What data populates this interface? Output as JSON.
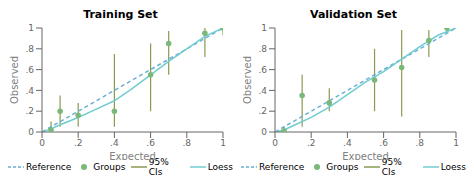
{
  "chart_data": [
    {
      "type": "scatter",
      "title": "Training Set",
      "xlabel": "Expected",
      "ylabel": "Observed",
      "xlim": [
        0,
        1.0
      ],
      "ylim": [
        0,
        1.0
      ],
      "xticks": [
        0,
        {
          "value": 0.2,
          "label": ".2"
        },
        {
          "value": 0.4,
          "label": ".4"
        },
        {
          "value": 0.6,
          "label": ".6"
        },
        {
          "value": 0.8,
          "label": ".8"
        },
        1
      ],
      "yticks": [
        0,
        {
          "value": 0.2,
          "label": ".2"
        },
        {
          "value": 0.4,
          "label": ".4"
        },
        {
          "value": 0.6,
          "label": ".6"
        },
        {
          "value": 0.8,
          "label": ".8"
        },
        1
      ],
      "grid": false,
      "legend": "bottom",
      "series": [
        {
          "name": "95% CIs",
          "type": "errorbar",
          "color": "#8a9a50",
          "line_style": "solid",
          "x": [
            0.05,
            0.1,
            0.2,
            0.4,
            0.6,
            0.7,
            0.9,
            1.0
          ],
          "ci_lower": [
            0.0,
            0.05,
            0.05,
            0.05,
            0.2,
            0.55,
            0.72,
            0.93
          ],
          "ci_upper": [
            0.1,
            0.35,
            0.28,
            0.75,
            0.85,
            0.97,
            1.0,
            1.0
          ]
        },
        {
          "name": "Reference",
          "type": "line",
          "color": "#6ab0d4",
          "line_style": "dashed",
          "x": [
            0,
            1
          ],
          "values": [
            0,
            1
          ]
        },
        {
          "name": "Loess",
          "type": "line",
          "color": "#70ccd0",
          "line_style": "solid",
          "x": [
            0.0,
            0.05,
            0.1,
            0.2,
            0.3,
            0.4,
            0.5,
            0.6,
            0.7,
            0.8,
            0.9,
            1.0
          ],
          "values": [
            0.0,
            0.03,
            0.07,
            0.14,
            0.22,
            0.3,
            0.42,
            0.55,
            0.68,
            0.8,
            0.92,
            1.0
          ]
        },
        {
          "name": "Groups",
          "type": "scatter",
          "color": "#7ab87a",
          "marker": "circle",
          "x": [
            0.05,
            0.1,
            0.2,
            0.4,
            0.6,
            0.7,
            0.9,
            1.0
          ],
          "values": [
            0.02,
            0.2,
            0.16,
            0.2,
            0.55,
            0.85,
            0.95,
            1.0
          ]
        }
      ]
    },
    {
      "type": "scatter",
      "title": "Validation Set",
      "xlabel": "Expected",
      "ylabel": "Observed",
      "xlim": [
        0,
        1.0
      ],
      "ylim": [
        0,
        1.0
      ],
      "xticks": [
        0,
        {
          "value": 0.2,
          "label": ".2"
        },
        {
          "value": 0.4,
          "label": ".4"
        },
        {
          "value": 0.6,
          "label": ".6"
        },
        {
          "value": 0.8,
          "label": ".8"
        },
        1
      ],
      "yticks": [
        0,
        {
          "value": 0.2,
          "label": ".2"
        },
        {
          "value": 0.4,
          "label": ".4"
        },
        {
          "value": 0.6,
          "label": ".6"
        },
        {
          "value": 0.8,
          "label": ".8"
        },
        1
      ],
      "grid": false,
      "legend": "bottom",
      "series": [
        {
          "name": "95% CIs",
          "type": "errorbar",
          "color": "#8a9a50",
          "line_style": "solid",
          "x": [
            0.05,
            0.15,
            0.3,
            0.55,
            0.7,
            0.85,
            0.95
          ],
          "ci_lower": [
            0.0,
            0.05,
            0.2,
            0.2,
            0.15,
            0.72,
            0.95
          ],
          "ci_upper": [
            0.05,
            0.55,
            0.42,
            0.8,
            0.98,
            0.98,
            1.0
          ]
        },
        {
          "name": "Reference",
          "type": "line",
          "color": "#6ab0d4",
          "line_style": "dashed",
          "x": [
            0,
            1
          ],
          "values": [
            0,
            1
          ]
        },
        {
          "name": "Loess",
          "type": "line",
          "color": "#70ccd0",
          "line_style": "solid",
          "x": [
            0.0,
            0.05,
            0.1,
            0.2,
            0.3,
            0.4,
            0.5,
            0.6,
            0.7,
            0.8,
            0.9,
            1.0
          ],
          "values": [
            0.0,
            0.02,
            0.06,
            0.14,
            0.24,
            0.36,
            0.48,
            0.58,
            0.7,
            0.82,
            0.93,
            1.0
          ]
        },
        {
          "name": "Groups",
          "type": "scatter",
          "color": "#7ab87a",
          "marker": "circle",
          "x": [
            0.05,
            0.15,
            0.3,
            0.55,
            0.7,
            0.85,
            0.95
          ],
          "values": [
            0.01,
            0.35,
            0.28,
            0.5,
            0.62,
            0.88,
            1.0
          ]
        }
      ]
    }
  ]
}
